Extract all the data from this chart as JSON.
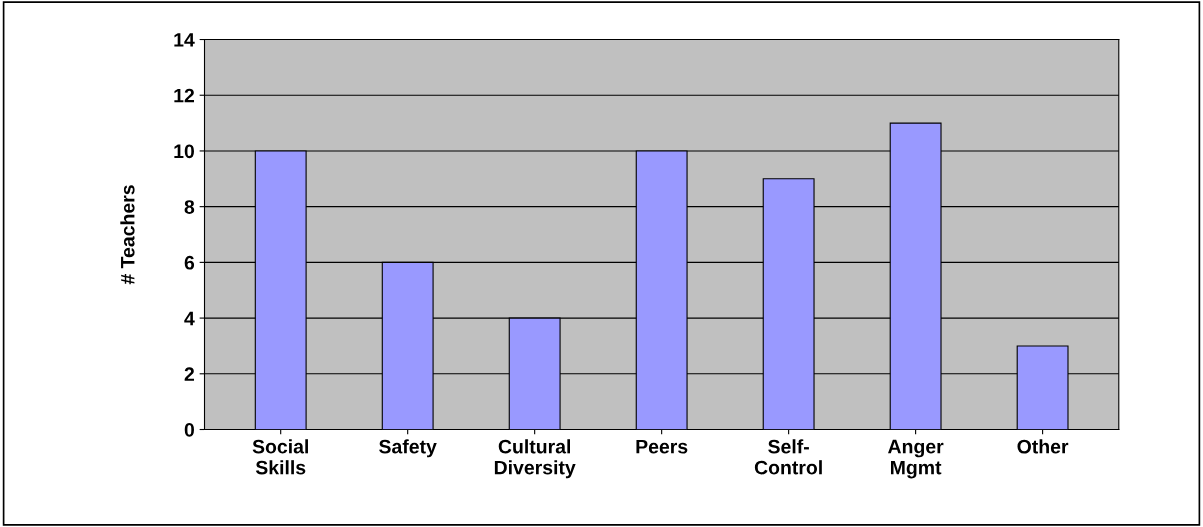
{
  "chart_data": {
    "type": "bar",
    "ylabel": "# Teachers",
    "categories": [
      "Social\nSkills",
      "Safety",
      "Cultural\nDiversity",
      "Peers",
      "Self-\nControl",
      "Anger\nMgmt",
      "Other"
    ],
    "values": [
      10,
      6,
      4,
      10,
      9,
      11,
      3
    ],
    "color": "#9999ff",
    "ylim": [
      0,
      14
    ],
    "yticks": [
      0,
      2,
      4,
      6,
      8,
      10,
      12,
      14
    ],
    "grid": "y"
  }
}
